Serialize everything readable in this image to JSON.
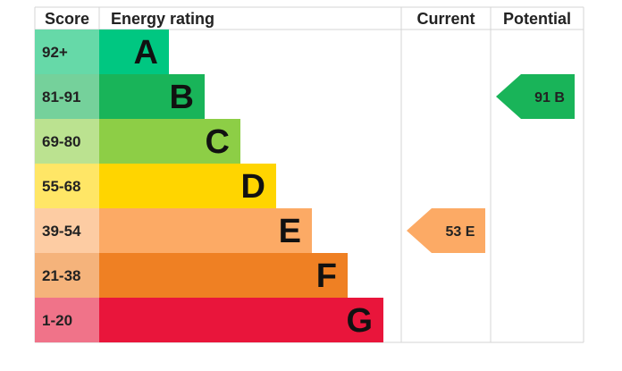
{
  "chart_data": {
    "type": "bar",
    "title": "",
    "headers": {
      "score": "Score",
      "rating": "Energy rating",
      "current": "Current",
      "potential": "Potential"
    },
    "bands": [
      {
        "score": "92+",
        "letter": "A",
        "band_color": "#00c781",
        "score_bg": "#66d9a8"
      },
      {
        "score": "81-91",
        "letter": "B",
        "band_color": "#19b459",
        "score_bg": "#75d19b"
      },
      {
        "score": "69-80",
        "letter": "C",
        "band_color": "#8dce46",
        "score_bg": "#bbe290"
      },
      {
        "score": "55-68",
        "letter": "D",
        "band_color": "#ffd500",
        "score_bg": "#ffe666"
      },
      {
        "score": "39-54",
        "letter": "E",
        "band_color": "#fcaa65",
        "score_bg": "#fdcca3"
      },
      {
        "score": "21-38",
        "letter": "F",
        "band_color": "#ef8023",
        "score_bg": "#f5b37b"
      },
      {
        "score": "1-20",
        "letter": "G",
        "band_color": "#e9153b",
        "score_bg": "#f07389"
      }
    ],
    "current": {
      "value": 53,
      "band": "E",
      "label": "53  E",
      "color": "#fcaa65"
    },
    "potential": {
      "value": 91,
      "band": "B",
      "label": "91  B",
      "color": "#19b459"
    }
  }
}
